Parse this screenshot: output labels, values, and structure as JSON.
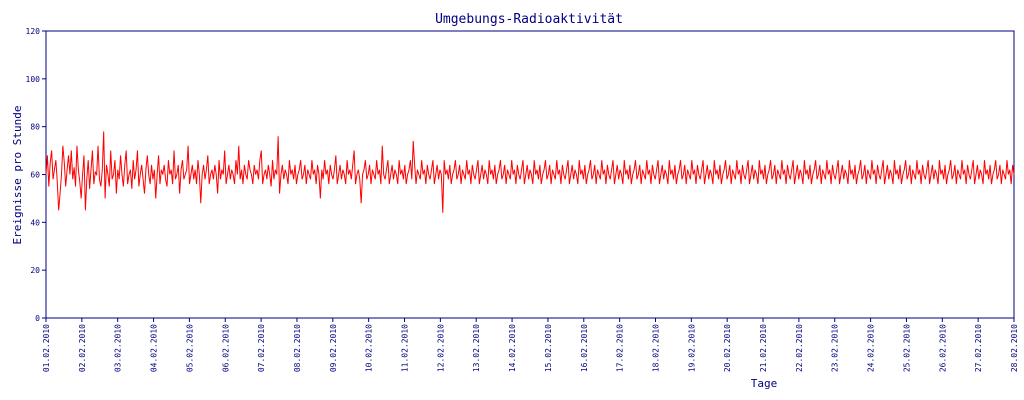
{
  "chart_data": {
    "type": "line",
    "title": "Umgebungs-Radioaktivität",
    "xlabel": "Tage",
    "ylabel": "Ereignisse pro Stunde",
    "ylim": [
      0,
      120
    ],
    "yticks": [
      0,
      20,
      40,
      60,
      80,
      100,
      120
    ],
    "x_tick_labels": [
      "01.02.2010",
      "02.02.2010",
      "03.02.2010",
      "04.02.2010",
      "05.02.2010",
      "06.02.2010",
      "07.02.2010",
      "08.02.2010",
      "09.02.2010",
      "10.02.2010",
      "11.02.2010",
      "12.02.2010",
      "13.02.2010",
      "14.02.2010",
      "15.02.2010",
      "16.02.2010",
      "17.02.2010",
      "18.02.2010",
      "19.02.2010",
      "20.02.2010",
      "21.02.2010",
      "22.02.2010",
      "23.02.2010",
      "24.02.2010",
      "25.02.2010",
      "26.02.2010",
      "27.02.2010",
      "28.02.2010"
    ],
    "grid": false,
    "series": [
      {
        "color": "#ff0000",
        "x_start": "01.02.2010 00:00",
        "x_end": "28.02.2010 00:00",
        "x_step": "1 hour",
        "values": [
          60,
          68,
          55,
          65,
          70,
          58,
          62,
          66,
          57,
          45,
          52,
          60,
          72,
          65,
          55,
          62,
          68,
          60,
          70,
          58,
          63,
          55,
          72,
          62,
          57,
          50,
          60,
          68,
          45,
          58,
          66,
          54,
          62,
          70,
          56,
          61,
          60,
          72,
          58,
          55,
          62,
          78,
          50,
          64,
          60,
          55,
          70,
          58,
          60,
          66,
          52,
          62,
          58,
          68,
          60,
          55,
          64,
          70,
          56,
          60,
          62,
          54,
          66,
          58,
          62,
          70,
          55,
          60,
          64,
          58,
          52,
          62,
          68,
          60,
          56,
          64,
          58,
          62,
          50,
          60,
          68,
          56,
          62,
          60,
          64,
          58,
          55,
          66,
          60,
          62,
          56,
          70,
          58,
          60,
          64,
          52,
          62,
          66,
          58,
          60,
          62,
          72,
          56,
          60,
          64,
          58,
          62,
          56,
          66,
          60,
          48,
          60,
          64,
          58,
          62,
          68,
          56,
          60,
          62,
          58,
          64,
          60,
          52,
          66,
          58,
          62,
          60,
          70,
          56,
          60,
          64,
          58,
          62,
          60,
          56,
          66,
          60,
          72,
          58,
          62,
          56,
          64,
          60,
          58,
          66,
          62,
          60,
          56,
          64,
          60,
          62,
          58,
          66,
          70,
          56,
          60,
          62,
          58,
          64,
          60,
          55,
          66,
          58,
          62,
          60,
          76,
          52,
          60,
          64,
          58,
          62,
          60,
          56,
          66,
          60,
          62,
          58,
          64,
          56,
          60,
          62,
          66,
          58,
          60,
          64,
          56,
          62,
          60,
          58,
          66,
          60,
          62,
          56,
          64,
          60,
          50,
          62,
          58,
          66,
          60,
          62,
          56,
          64,
          60,
          58,
          62,
          68,
          56,
          60,
          64,
          58,
          62,
          60,
          56,
          66,
          60,
          62,
          58,
          64,
          70,
          56,
          60,
          62,
          58,
          48,
          60,
          62,
          66,
          58,
          60,
          64,
          56,
          62,
          60,
          58,
          66,
          60,
          62,
          56,
          72,
          60,
          58,
          62,
          66,
          56,
          60,
          64,
          58,
          62,
          60,
          56,
          66,
          60,
          62,
          58,
          64,
          56,
          60,
          62,
          66,
          58,
          74,
          64,
          56,
          62,
          60,
          58,
          66,
          60,
          62,
          56,
          64,
          60,
          58,
          62,
          66,
          56,
          60,
          64,
          58,
          62,
          60,
          44,
          66,
          60,
          62,
          58,
          64,
          56,
          60,
          62,
          66,
          58,
          60,
          64,
          56,
          62,
          60,
          58,
          66,
          60,
          62,
          56,
          64,
          60,
          58,
          62,
          66,
          56,
          60,
          64,
          58,
          62,
          60,
          56,
          66,
          60,
          62,
          58,
          64,
          56,
          60,
          62,
          66,
          58,
          60,
          64,
          56,
          62,
          60,
          58,
          66,
          60,
          62,
          56,
          64,
          60,
          58,
          62,
          66,
          56,
          60,
          64,
          58,
          62,
          60,
          56,
          66,
          60,
          62,
          58,
          64,
          56,
          60,
          62,
          66,
          58,
          60,
          64,
          56,
          62,
          60,
          58,
          66,
          60,
          62,
          56,
          64,
          60,
          58,
          62,
          66,
          56,
          60,
          64,
          58,
          62,
          60,
          56,
          66,
          60,
          62,
          58,
          64,
          56,
          60,
          62,
          66,
          58,
          60,
          64,
          56,
          62,
          60,
          58,
          66,
          60,
          62,
          56,
          64,
          60,
          58,
          62,
          66,
          56,
          60,
          64,
          58,
          62,
          60,
          56,
          66,
          60,
          62,
          58,
          64,
          56,
          60,
          62,
          66,
          58,
          60,
          64,
          56,
          62,
          60,
          58,
          66,
          60,
          62,
          56,
          64,
          60,
          58,
          62,
          66,
          56,
          60,
          64,
          58,
          62,
          60,
          56,
          66,
          60,
          62,
          58,
          64,
          56,
          60,
          62,
          66,
          58,
          60,
          64,
          56,
          62,
          60,
          58,
          66,
          60,
          62,
          56,
          64,
          60,
          58,
          62,
          66,
          56,
          60,
          64,
          58,
          62,
          60,
          56,
          66,
          60,
          62,
          58,
          64,
          56,
          60,
          62,
          66,
          58,
          60,
          64,
          56,
          62,
          60,
          58,
          66,
          60,
          62,
          56,
          64,
          60,
          58,
          62,
          66,
          56,
          60,
          64,
          58,
          62,
          60,
          56,
          66,
          60,
          62,
          58,
          64,
          56,
          60,
          62,
          66,
          58,
          60,
          64,
          56,
          62,
          60,
          58,
          66,
          60,
          62,
          56,
          64,
          60,
          58,
          62,
          66,
          56,
          60,
          64,
          58,
          62,
          60,
          56,
          66,
          60,
          62,
          58,
          64,
          56,
          60,
          62,
          66,
          58,
          60,
          64,
          56,
          62,
          60,
          58,
          66,
          60,
          62,
          56,
          64,
          60,
          58,
          62,
          66,
          56,
          60,
          64,
          58,
          62,
          60,
          56,
          66,
          60,
          62,
          58,
          64,
          56,
          60,
          62,
          66,
          58,
          60,
          64,
          56,
          62,
          60,
          58,
          66,
          60,
          62,
          56,
          64,
          60,
          58,
          62,
          66,
          56,
          60,
          64,
          58,
          62,
          60,
          56,
          66,
          60,
          62,
          58,
          64,
          56,
          60,
          62,
          66,
          58,
          60,
          64,
          56,
          62,
          60,
          58,
          66,
          60,
          62,
          56,
          64,
          60,
          58,
          62,
          66,
          56,
          60,
          64,
          58,
          62,
          60,
          56,
          66,
          60,
          62,
          58,
          64,
          56,
          60,
          62,
          66,
          58,
          60,
          64,
          56,
          62,
          60,
          58,
          66,
          60,
          62,
          56,
          64,
          60,
          58,
          62,
          66,
          56,
          60,
          64,
          58,
          62,
          60,
          56,
          66,
          60,
          62,
          58,
          64,
          56,
          60,
          62,
          66,
          58,
          60,
          64,
          56,
          62,
          60,
          58,
          66,
          60,
          62,
          56,
          64,
          60
        ]
      }
    ]
  },
  "colors": {
    "axis": "#000080",
    "text": "#000080",
    "line": "#ff0000",
    "background": "#ffffff"
  }
}
